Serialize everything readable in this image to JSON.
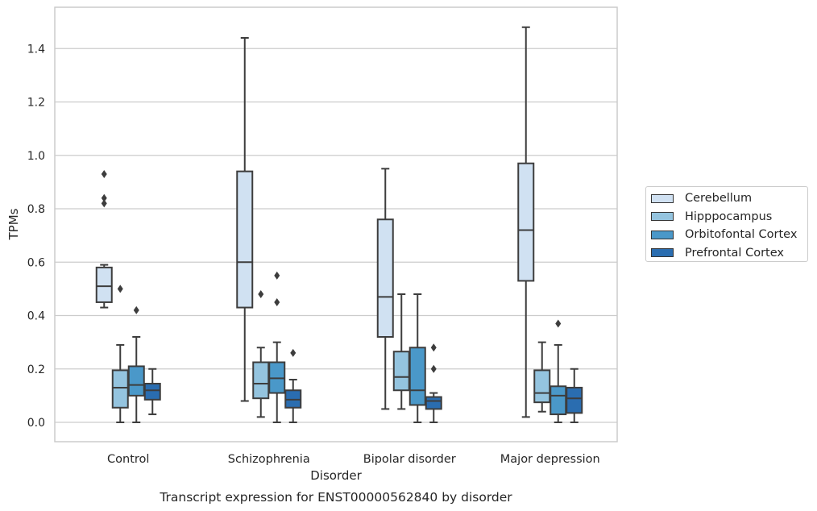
{
  "chart_data": {
    "type": "box",
    "title": "",
    "caption": "Transcript expression for ENST00000562840 by disorder",
    "xlabel": "Disorder",
    "ylabel": "TPMs",
    "ylim": [
      -0.07,
      1.55
    ],
    "yticks": [
      "0.0",
      "0.2",
      "0.4",
      "0.6",
      "0.8",
      "1.0",
      "1.2",
      "1.4"
    ],
    "grid": "horizontal",
    "legend_position": "right",
    "categories": [
      "Control",
      "Schizophrenia",
      "Bipolar disorder",
      "Major depression"
    ],
    "series": [
      {
        "name": "Cerebellum",
        "color": "#d0e1f2",
        "boxes": [
          {
            "whisker_low": 0.43,
            "q1": 0.45,
            "median": 0.51,
            "q3": 0.58,
            "whisker_high": 0.59,
            "outliers": [
              0.82,
              0.84,
              0.93
            ]
          },
          {
            "whisker_low": 0.08,
            "q1": 0.43,
            "median": 0.6,
            "q3": 0.94,
            "whisker_high": 1.44,
            "outliers": []
          },
          {
            "whisker_low": 0.05,
            "q1": 0.32,
            "median": 0.47,
            "q3": 0.76,
            "whisker_high": 0.95,
            "outliers": []
          },
          {
            "whisker_low": 0.02,
            "q1": 0.53,
            "median": 0.72,
            "q3": 0.97,
            "whisker_high": 1.48,
            "outliers": []
          }
        ]
      },
      {
        "name": "Hipppocampus",
        "color": "#94c4df",
        "boxes": [
          {
            "whisker_low": 0.0,
            "q1": 0.055,
            "median": 0.13,
            "q3": 0.195,
            "whisker_high": 0.29,
            "outliers": [
              0.5
            ]
          },
          {
            "whisker_low": 0.02,
            "q1": 0.09,
            "median": 0.145,
            "q3": 0.225,
            "whisker_high": 0.28,
            "outliers": [
              0.48
            ]
          },
          {
            "whisker_low": 0.05,
            "q1": 0.12,
            "median": 0.17,
            "q3": 0.265,
            "whisker_high": 0.48,
            "outliers": []
          },
          {
            "whisker_low": 0.04,
            "q1": 0.075,
            "median": 0.11,
            "q3": 0.195,
            "whisker_high": 0.3,
            "outliers": []
          }
        ]
      },
      {
        "name": "Orbitofontal Cortex",
        "color": "#4a98c9",
        "boxes": [
          {
            "whisker_low": 0.0,
            "q1": 0.1,
            "median": 0.14,
            "q3": 0.21,
            "whisker_high": 0.32,
            "outliers": [
              0.42
            ]
          },
          {
            "whisker_low": 0.0,
            "q1": 0.11,
            "median": 0.165,
            "q3": 0.225,
            "whisker_high": 0.3,
            "outliers": [
              0.45,
              0.55
            ]
          },
          {
            "whisker_low": 0.0,
            "q1": 0.065,
            "median": 0.12,
            "q3": 0.28,
            "whisker_high": 0.48,
            "outliers": []
          },
          {
            "whisker_low": 0.0,
            "q1": 0.03,
            "median": 0.1,
            "q3": 0.135,
            "whisker_high": 0.29,
            "outliers": [
              0.37
            ]
          }
        ]
      },
      {
        "name": "Prefrontal Cortex",
        "color": "#2a6db0",
        "boxes": [
          {
            "whisker_low": 0.03,
            "q1": 0.085,
            "median": 0.12,
            "q3": 0.145,
            "whisker_high": 0.2,
            "outliers": []
          },
          {
            "whisker_low": 0.0,
            "q1": 0.055,
            "median": 0.085,
            "q3": 0.12,
            "whisker_high": 0.16,
            "outliers": [
              0.26
            ]
          },
          {
            "whisker_low": 0.0,
            "q1": 0.05,
            "median": 0.08,
            "q3": 0.095,
            "whisker_high": 0.11,
            "outliers": [
              0.2,
              0.28
            ]
          },
          {
            "whisker_low": 0.0,
            "q1": 0.035,
            "median": 0.09,
            "q3": 0.13,
            "whisker_high": 0.2,
            "outliers": []
          }
        ]
      }
    ]
  }
}
